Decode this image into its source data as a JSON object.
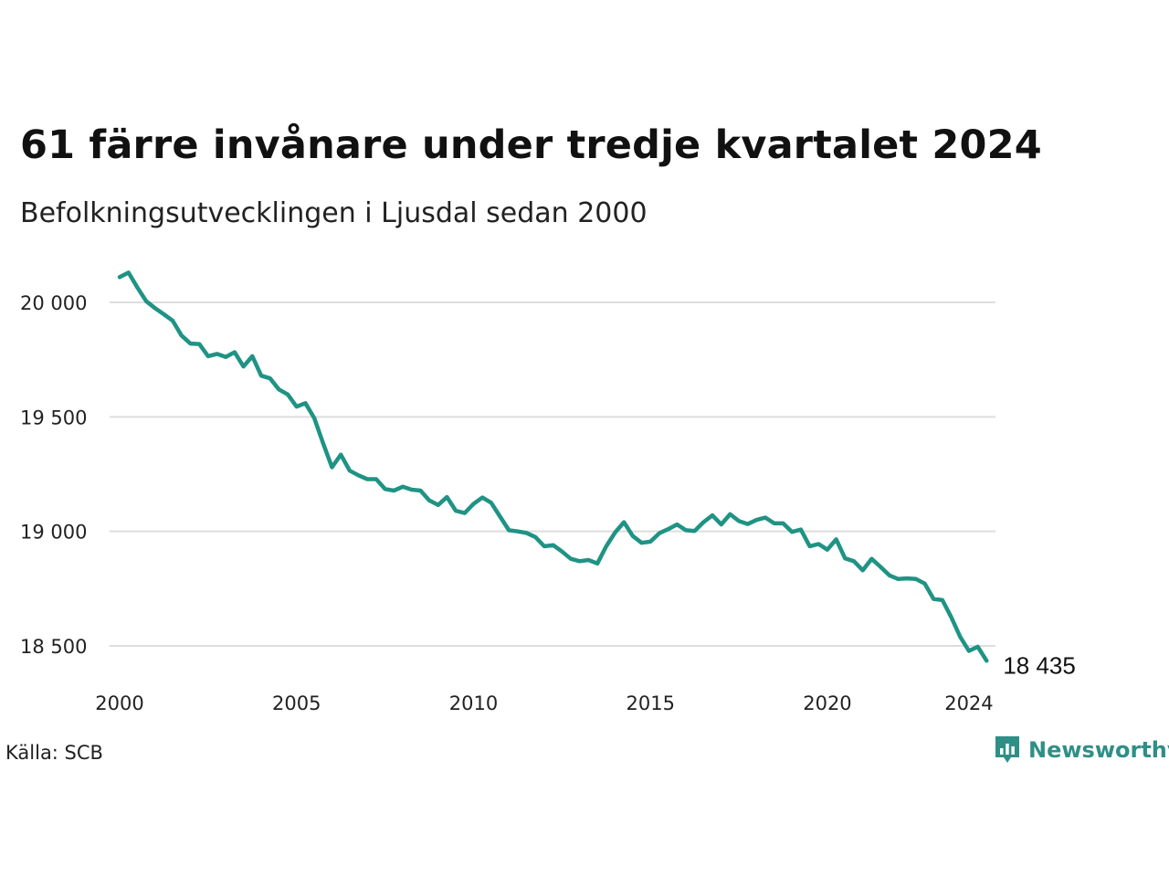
{
  "header": {
    "title": "61 färre invånare under tredje kvartalet 2024",
    "subtitle": "Befolkningsutvecklingen i Ljusdal sedan 2000"
  },
  "footer": {
    "source": "Källa: SCB",
    "brand": "Newsworthy"
  },
  "colors": {
    "line": "#1f9384",
    "grid": "#dddddd",
    "brand": "#2f8f86"
  },
  "chart_data": {
    "type": "line",
    "title": "61 färre invånare under tredje kvartalet 2024",
    "subtitle": "Befolkningsutvecklingen i Ljusdal sedan 2000",
    "xlabel": "",
    "ylabel": "",
    "x_ticks": [
      "2000",
      "2005",
      "2010",
      "2015",
      "2020",
      "2024"
    ],
    "y_ticks": [
      "18 500",
      "19 000",
      "19 500",
      "20 000"
    ],
    "xlim": [
      2000.0,
      2024.75
    ],
    "ylim": [
      18400,
      20150
    ],
    "grid": true,
    "end_label": "18 435",
    "series": [
      {
        "x_start": 2000.0,
        "x_step": 0.25,
        "values": [
          20110,
          20130,
          20065,
          20005,
          19975,
          19948,
          19920,
          19855,
          19820,
          19818,
          19765,
          19775,
          19762,
          19782,
          19720,
          19765,
          19680,
          19668,
          19620,
          19598,
          19545,
          19560,
          19495,
          19385,
          19280,
          19335,
          19265,
          19245,
          19228,
          19228,
          19185,
          19178,
          19195,
          19182,
          19178,
          19135,
          19115,
          19150,
          19090,
          19080,
          19120,
          19148,
          19125,
          19065,
          19005,
          19000,
          18993,
          18975,
          18935,
          18940,
          18912,
          18880,
          18870,
          18875,
          18860,
          18935,
          18995,
          19040,
          18980,
          18950,
          18955,
          18992,
          19010,
          19030,
          19005,
          19002,
          19040,
          19070,
          19030,
          19075,
          19045,
          19032,
          19050,
          19060,
          19035,
          19035,
          18998,
          19008,
          18935,
          18945,
          18920,
          18965,
          18882,
          18870,
          18830,
          18880,
          18845,
          18808,
          18792,
          18795,
          18792,
          18772,
          18705,
          18700,
          18625,
          18540,
          18478,
          18496,
          18435
        ]
      }
    ]
  }
}
